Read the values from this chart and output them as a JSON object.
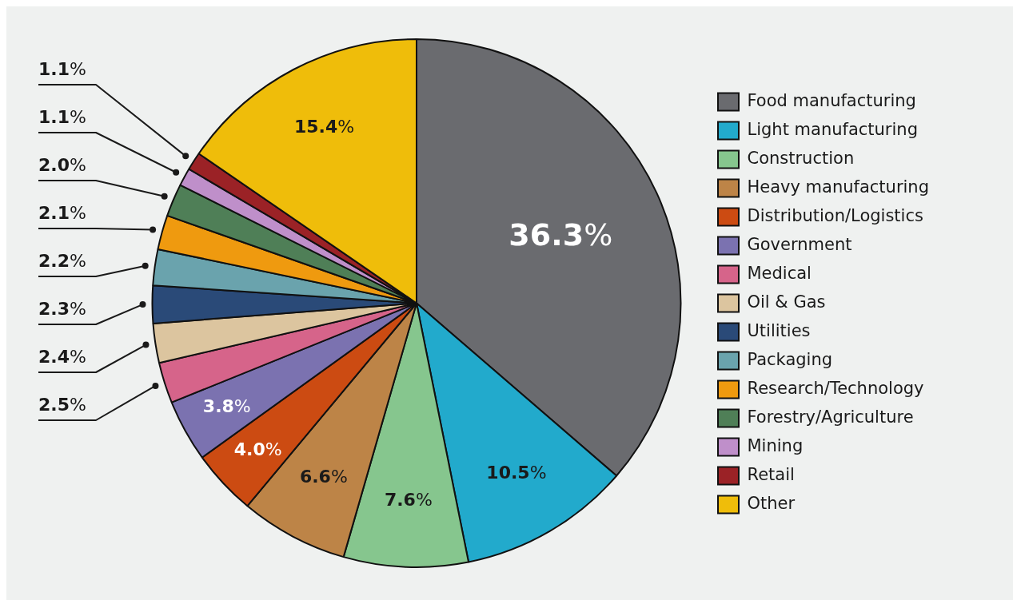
{
  "chart_data": {
    "type": "pie",
    "categories": [
      "Food manufacturing",
      "Light manufacturing",
      "Construction",
      "Heavy manufacturing",
      "Distribution/Logistics",
      "Government",
      "Medical",
      "Oil & Gas",
      "Utilities",
      "Packaging",
      "Research/Technology",
      "Forestry/Agriculture",
      "Mining",
      "Retail",
      "Other"
    ],
    "values": [
      36.3,
      10.5,
      7.6,
      6.6,
      4.0,
      3.8,
      2.5,
      2.4,
      2.3,
      2.2,
      2.1,
      2.0,
      1.1,
      1.1,
      15.4
    ],
    "colors": [
      "#6a6b6f",
      "#22aacc",
      "#86c68e",
      "#bd8447",
      "#cc4b12",
      "#7b72b0",
      "#d6648a",
      "#dcc59f",
      "#2a4a78",
      "#6aa3ad",
      "#ef9a0f",
      "#4f7f57",
      "#bf8fca",
      "#9b2226",
      "#efbd0a"
    ],
    "value_labels": [
      "36.3%",
      "10.5%",
      "7.6%",
      "6.6%",
      "4.0%",
      "3.8%",
      "2.5%",
      "2.4%",
      "2.3%",
      "2.2%",
      "2.1%",
      "2.0%",
      "1.1%",
      "1.1%",
      "15.4%"
    ],
    "legend": "right"
  }
}
